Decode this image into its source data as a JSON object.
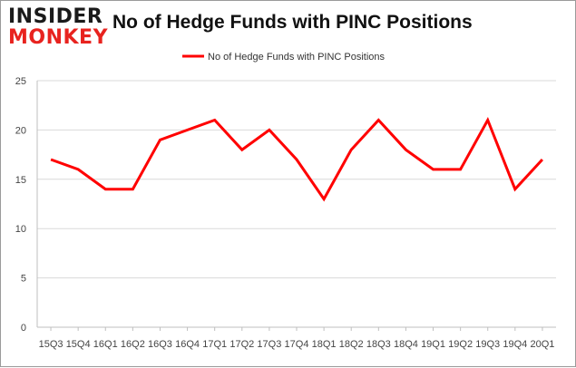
{
  "logo": {
    "line1": "INSIDER",
    "line2": "MONKEY"
  },
  "chart_data": {
    "type": "line",
    "title": "No of Hedge Funds with PINC Positions",
    "categories": [
      "15Q3",
      "15Q4",
      "16Q1",
      "16Q2",
      "16Q3",
      "16Q4",
      "17Q1",
      "17Q2",
      "17Q3",
      "17Q4",
      "18Q1",
      "18Q2",
      "18Q3",
      "18Q4",
      "19Q1",
      "19Q2",
      "19Q3",
      "19Q4",
      "20Q1"
    ],
    "series": [
      {
        "name": "No of Hedge Funds with PINC Positions",
        "values": [
          17,
          16,
          14,
          14,
          19,
          20,
          21,
          18,
          20,
          17,
          13,
          18,
          21,
          18,
          16,
          16,
          21,
          14,
          17
        ],
        "color": "#ff0000"
      }
    ],
    "ylim": [
      0,
      25
    ],
    "yticks": [
      0,
      5,
      10,
      15,
      20,
      25
    ],
    "grid": true,
    "legend": "top-center"
  }
}
